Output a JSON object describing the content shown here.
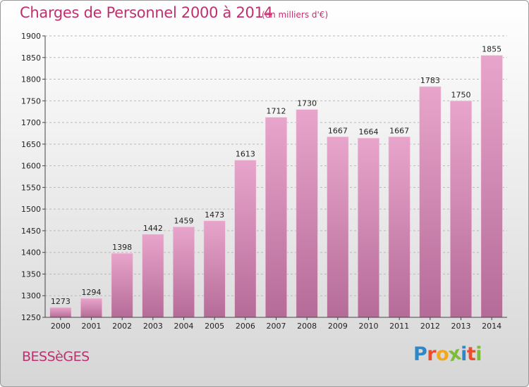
{
  "title": "Charges de Personnel 2000 à 2014",
  "unit_note": "(en milliers d'€)",
  "town": "BESSèGES",
  "brand": {
    "letters": [
      "P",
      "r",
      "o",
      "x",
      "i",
      "t",
      "i"
    ],
    "colors": [
      "#2e88c8",
      "#e94f2e",
      "#f2a81d",
      "#7cbc3a",
      "#2e88c8",
      "#e94f2e",
      "#7cbc3a"
    ]
  },
  "colors": {
    "accent": "#c0306e",
    "bar_top": "#e8a5cb",
    "bar_bottom": "#b56b98"
  },
  "chart_data": {
    "type": "bar",
    "title": "Charges de Personnel 2000 à 2014",
    "categories": [
      "2000",
      "2001",
      "2002",
      "2003",
      "2004",
      "2005",
      "2006",
      "2007",
      "2008",
      "2009",
      "2010",
      "2011",
      "2012",
      "2013",
      "2014"
    ],
    "values": [
      1273,
      1294,
      1398,
      1442,
      1459,
      1473,
      1613,
      1712,
      1730,
      1667,
      1664,
      1667,
      1783,
      1750,
      1855
    ],
    "data_labels": [
      "1273",
      "1294",
      "1398",
      "1442",
      "1459",
      "1473",
      "1613",
      "1712",
      "1730",
      "1667",
      "1664",
      "1667",
      "1783",
      "1750",
      "1855"
    ],
    "y_ticks": [
      "1250",
      "1300",
      "1350",
      "1400",
      "1450",
      "1500",
      "1550",
      "1600",
      "1650",
      "1700",
      "1750",
      "1800",
      "1850",
      "1900"
    ],
    "ylim": [
      1250,
      1900
    ],
    "grid": true,
    "legend": "none"
  }
}
